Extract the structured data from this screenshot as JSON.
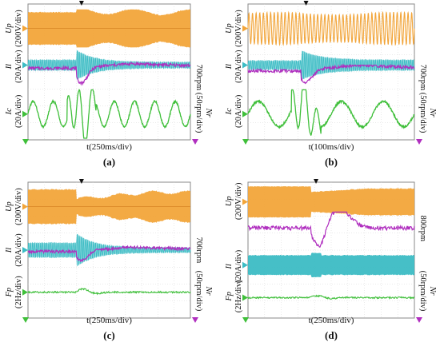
{
  "colors": {
    "Up": "#f2a53a",
    "Il": "#3cbcc4",
    "Ic": "#3fbf3a",
    "Fp": "#3fbf3a",
    "Nr": "#b02fbf",
    "frame": "#8a8a8a",
    "grid": "#d6d6d6"
  },
  "chart_data": [
    {
      "type": "line",
      "panel": "a",
      "caption": "(a)",
      "time_label": "t(250ms/div)",
      "left_labels": [
        {
          "name": "Up",
          "scale": "(200V/div)"
        },
        {
          "name": "Il",
          "scale": "(20A/div)"
        },
        {
          "name": "Ic",
          "scale": "(20A/div)"
        }
      ],
      "right_labels": [
        "700rpm",
        "(50rpm/div)",
        "Nr"
      ],
      "series": [
        {
          "name": "Up",
          "kind": "up_burst",
          "disturbance_at": 0.3,
          "before_amp": 0.85,
          "after_amp": 1.0,
          "swell": 0.25
        },
        {
          "name": "Il",
          "kind": "il_burst",
          "disturbance_at": 0.3,
          "before_amp": 0.35,
          "peak_amp": 1.0,
          "after_amp": 0.2
        },
        {
          "name": "Nr",
          "kind": "nr_dip",
          "disturbance_at": 0.3,
          "dip_depth": 0.9,
          "recover": 0.35
        },
        {
          "name": "Ic",
          "kind": "ic_sine",
          "disturbance_at": 0.3,
          "cycles": 8
        }
      ]
    },
    {
      "type": "line",
      "panel": "b",
      "caption": "(b)",
      "time_label": "t(100ms/div)",
      "left_labels": [
        {
          "name": "Up",
          "scale": "(200V/div)"
        },
        {
          "name": "Il",
          "scale": "(20A/div)"
        },
        {
          "name": "Ic",
          "scale": "(20A/div)"
        }
      ],
      "right_labels": [
        "700rpm",
        "(50rpm/div)",
        "Nr"
      ],
      "series": [
        {
          "name": "Up",
          "kind": "up_dense",
          "disturbance_at": 0.32,
          "before_amp": 0.85,
          "after_amp": 0.85,
          "swell": 0.05
        },
        {
          "name": "Il",
          "kind": "il_burst",
          "disturbance_at": 0.32,
          "before_amp": 0.3,
          "peak_amp": 1.0,
          "after_amp": 0.35
        },
        {
          "name": "Nr",
          "kind": "nr_dip",
          "disturbance_at": 0.32,
          "dip_depth": 0.7,
          "recover": 0.45
        },
        {
          "name": "Ic",
          "kind": "ic_sine_slow",
          "disturbance_at": 0.32,
          "cycles": 4
        }
      ]
    },
    {
      "type": "line",
      "panel": "c",
      "caption": "(c)",
      "time_label": "t(250ms/div)",
      "left_labels": [
        {
          "name": "Up",
          "scale": "(200V/div)"
        },
        {
          "name": "Il",
          "scale": "(20A/div)"
        },
        {
          "name": "Fp",
          "scale": "(2Hz/div)"
        }
      ],
      "right_labels": [
        "700rpm",
        "(50rpm/div)",
        "Nr"
      ],
      "series": [
        {
          "name": "Up",
          "kind": "up_burst",
          "disturbance_at": 0.3,
          "before_amp": 0.9,
          "after_amp": 0.75,
          "swell": -0.4
        },
        {
          "name": "Il",
          "kind": "il_burst",
          "disturbance_at": 0.3,
          "before_amp": 0.45,
          "peak_amp": 1.0,
          "after_amp": 0.15
        },
        {
          "name": "Nr",
          "kind": "nr_dip",
          "disturbance_at": 0.3,
          "dip_depth": 0.6,
          "recover": 0.35
        },
        {
          "name": "Fp",
          "kind": "fp_flat",
          "disturbance_at": 0.3,
          "bump": 0.5
        }
      ]
    },
    {
      "type": "line",
      "panel": "d",
      "caption": "(d)",
      "time_label": "t(250ms/div)",
      "left_labels": [
        {
          "name": "Up",
          "scale": "(200V/div)"
        },
        {
          "name": "Il",
          "scale": "(20A/div)"
        },
        {
          "name": "Fp",
          "scale": "(2Hz/div)"
        }
      ],
      "right_labels": [
        "800rpm",
        "(50rpm/div)",
        "Nr"
      ],
      "series": [
        {
          "name": "Up",
          "kind": "up_step",
          "disturbance_at": 0.38,
          "before_amp": 1.0,
          "after_amp": 0.85,
          "swell": -0.2
        },
        {
          "name": "Nr",
          "kind": "nr_dip_d",
          "disturbance_at": 0.38,
          "dip_depth": 1.0,
          "recover": 0.3
        },
        {
          "name": "Il",
          "kind": "il_block",
          "disturbance_at": 0.38,
          "before_amp": 0.8,
          "peak_amp": 1.0,
          "after_amp": 0.8
        },
        {
          "name": "Fp",
          "kind": "fp_flat",
          "disturbance_at": 0.38,
          "bump": 0.3
        }
      ]
    }
  ]
}
